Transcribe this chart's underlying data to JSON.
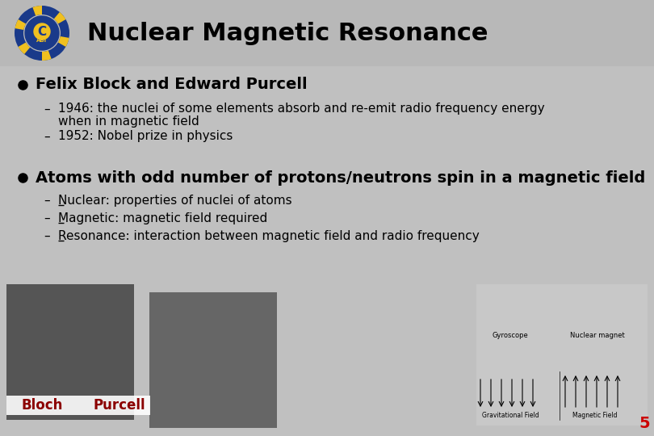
{
  "title": "Nuclear Magnetic Resonance",
  "background_color": "#c0c0c0",
  "title_fontsize": 22,
  "title_color": "#000000",
  "bullet1": "Felix Block and Edward Purcell",
  "sub1a_line1": "1946: the nuclei of some elements absorb and re-emit radio frequency energy",
  "sub1a_line2": "when in magnetic field",
  "sub1b": "1952: Nobel prize in physics",
  "bullet2": "Atoms with odd number of protons/neutrons spin in a magnetic field",
  "sub2_items": [
    [
      "N",
      "uclear: properties of nuclei of atoms"
    ],
    [
      "M",
      "agnetic: magnetic field required"
    ],
    [
      "R",
      "esonance: interaction between magnetic field and radio frequency"
    ]
  ],
  "label_bloch": "Bloch",
  "label_purcell": "Purcell",
  "label_color": "#8b0000",
  "slide_number": "5",
  "slide_number_color": "#cc0000"
}
